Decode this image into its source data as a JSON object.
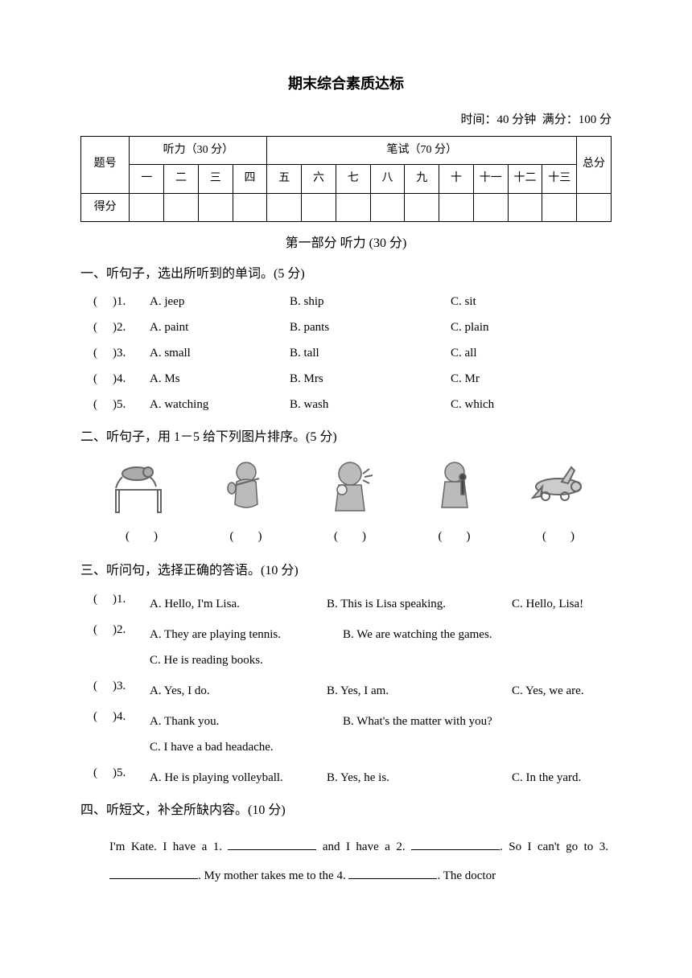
{
  "title": "期末综合素质达标",
  "meta": {
    "time_label": "时间：",
    "time_value": "40 分钟",
    "full_label": "满分：",
    "full_value": "100 分"
  },
  "table": {
    "listening_header": "听力（30 分）",
    "written_header": "笔试（70 分）",
    "total_header": "总分",
    "no_label": "题号",
    "score_label": "得分",
    "nums": [
      "一",
      "二",
      "三",
      "四",
      "五",
      "六",
      "七",
      "八",
      "九",
      "十",
      "十一",
      "十二",
      "十三"
    ]
  },
  "part1": {
    "heading": "第一部分 听力 (30 分)"
  },
  "s1": {
    "heading": "一、听句子，选出所听到的单词。(5 分)",
    "rows": [
      {
        "n": "1.",
        "a": "A. jeep",
        "b": "B. ship",
        "c": "C. sit"
      },
      {
        "n": "2.",
        "a": "A. paint",
        "b": "B. pants",
        "c": "C. plain"
      },
      {
        "n": "3.",
        "a": "A. small",
        "b": "B. tall",
        "c": "C. all"
      },
      {
        "n": "4.",
        "a": "A. Ms",
        "b": "B. Mrs",
        "c": "C. Mr"
      },
      {
        "n": "5.",
        "a": "A. watching",
        "b": "B. wash",
        "c": "C. which"
      }
    ]
  },
  "s2": {
    "heading": "二、听句子，用 1－5 给下列图片排序。(5 分)",
    "blank": "(　　)"
  },
  "s3": {
    "heading": "三、听问句，选择正确的答语。(10 分)",
    "items": [
      {
        "n": "1.",
        "opts": [
          "A. Hello, I'm Lisa.",
          "B. This is Lisa speaking.",
          "C. Hello, Lisa!"
        ],
        "layout": "triple-one"
      },
      {
        "n": "2.",
        "opts": [
          "A. They are playing tennis.",
          "B. We are watching the games."
        ],
        "extra": "C. He is reading books."
      },
      {
        "n": "3.",
        "opts": [
          "A. Yes, I do.",
          "B. Yes, I am.",
          "C. Yes, we are."
        ],
        "layout": "triple-one"
      },
      {
        "n": "4.",
        "opts": [
          "A. Thank you.",
          "B. What's the matter with you?"
        ],
        "extra": "C. I have a bad headache."
      },
      {
        "n": "5.",
        "opts": [
          "A. He is playing volleyball.",
          "B. Yes, he is.",
          "C. In the yard."
        ],
        "layout": "triple-one"
      }
    ]
  },
  "s4": {
    "heading": "四、听短文，补全所缺内容。(10 分)",
    "para_parts": [
      "I'm Kate. I have a 1. ",
      " and I have a 2. ",
      ". So I can't go to 3. ",
      ". My mother takes me to the 4. ",
      ". The doctor"
    ]
  },
  "svg_color": "#666666"
}
